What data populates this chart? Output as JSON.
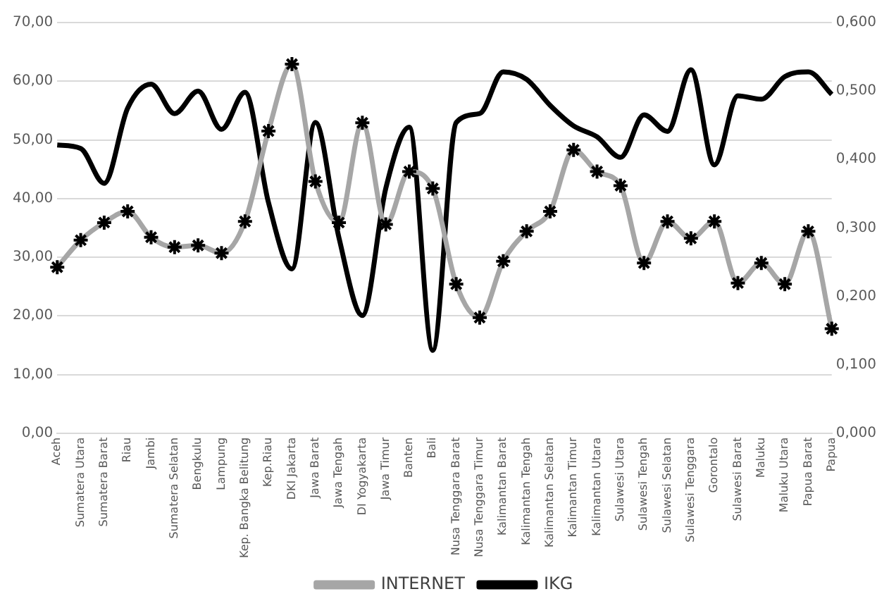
{
  "chart_data": {
    "type": "line",
    "categories": [
      "Aceh",
      "Sumatera Utara",
      "Sumatera Barat",
      "Riau",
      "Jambi",
      "Sumatera Selatan",
      "Bengkulu",
      "Lampung",
      "Kep. Bangka Belitung",
      "Kep.Riau",
      "DKI Jakarta",
      "Jawa Barat",
      "Jawa Tengah",
      "DI Yogyakarta",
      "Jawa Timur",
      "Banten",
      "Bali",
      "Nusa Tenggara Barat",
      "Nusa Tenggara Timur",
      "Kalimantan Barat",
      "Kalimantan Tengah",
      "Kalimantan Selatan",
      "Kalimantan Timur",
      "Kalimantan Utara",
      "Sulawesi Utara",
      "Sulawesi Tengah",
      "Sulawesi Selatan",
      "Sulawesi Tenggara",
      "Gorontalo",
      "Sulawesi Barat",
      "Maluku",
      "Maluku Utara",
      "Papua Barat",
      "Papua"
    ],
    "series": [
      {
        "name": "INTERNET",
        "color": "#a6a6a6",
        "marker": "cross",
        "values": [
          28.3,
          32.9,
          35.9,
          37.8,
          33.4,
          31.7,
          32.0,
          30.7,
          36.1,
          51.5,
          62.9,
          42.9,
          35.9,
          52.9,
          35.6,
          44.6,
          41.7,
          25.4,
          19.7,
          29.3,
          34.4,
          37.8,
          48.3,
          44.6,
          42.2,
          29.0,
          36.1,
          33.2,
          36.1,
          25.6,
          29.0,
          25.4,
          34.4,
          17.8
        ]
      },
      {
        "name": "IKG",
        "color": "#000000",
        "marker": "none",
        "axis": "y2",
        "values": [
          0.421,
          0.416,
          0.365,
          0.475,
          0.51,
          0.467,
          0.5,
          0.444,
          0.498,
          0.337,
          0.24,
          0.454,
          0.286,
          0.172,
          0.358,
          0.447,
          0.121,
          0.454,
          0.467,
          0.528,
          0.517,
          0.479,
          0.449,
          0.433,
          0.403,
          0.465,
          0.441,
          0.531,
          0.392,
          0.493,
          0.488,
          0.521,
          0.528,
          0.495
        ]
      }
    ],
    "ylim": [
      0,
      70
    ],
    "yticks": [
      {
        "value": 0,
        "label": "0,00"
      },
      {
        "value": 10,
        "label": "10,00"
      },
      {
        "value": 20,
        "label": "20,00"
      },
      {
        "value": 30,
        "label": "30,00"
      },
      {
        "value": 40,
        "label": "40,00"
      },
      {
        "value": 50,
        "label": "50,00"
      },
      {
        "value": 60,
        "label": "60,00"
      },
      {
        "value": 70,
        "label": "70,00"
      }
    ],
    "y2lim": [
      0,
      0.6
    ],
    "y2ticks": [
      {
        "value": 0,
        "label": "0,000"
      },
      {
        "value": 0.1,
        "label": "0,100"
      },
      {
        "value": 0.2,
        "label": "0,200"
      },
      {
        "value": 0.3,
        "label": "0,300"
      },
      {
        "value": 0.4,
        "label": "0,400"
      },
      {
        "value": 0.5,
        "label": "0,500"
      },
      {
        "value": 0.6,
        "label": "0,600"
      }
    ],
    "grid": "y",
    "legend": "bottom"
  }
}
